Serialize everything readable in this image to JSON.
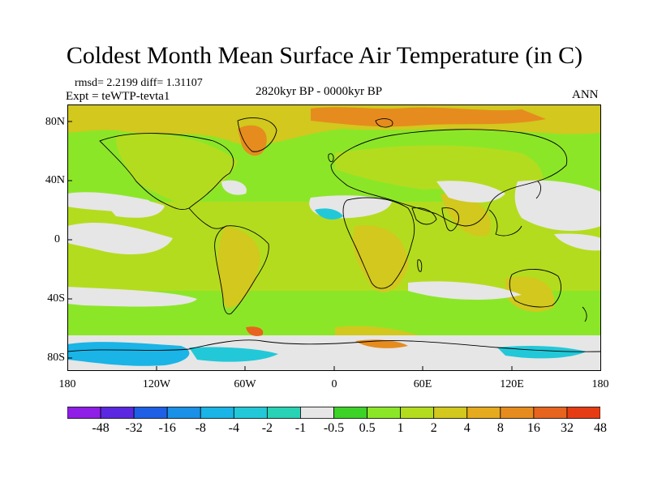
{
  "title": "Coldest Month Mean Surface Air Temperature (in C)",
  "stats": {
    "rmsd_label": "rmsd= 2.2199 diff= 1.31107"
  },
  "experiment_label": "Expt = teWTP-tevta1",
  "period_label": "2820kyr BP - 0000kyr BP",
  "season_label": "ANN",
  "y_axis": {
    "ticks": [
      "80N",
      "40N",
      "0",
      "40S",
      "80S"
    ]
  },
  "x_axis": {
    "ticks": [
      "180",
      "120W",
      "60W",
      "0",
      "60E",
      "120E",
      "180"
    ]
  },
  "colorbar": {
    "colors": [
      "#8f1ee6",
      "#5a28e0",
      "#1f5fe6",
      "#1a90e6",
      "#1ab4e6",
      "#22c8d8",
      "#28d2b4",
      "#e6e6e6",
      "#3cd228",
      "#8ce628",
      "#b4dc1e",
      "#d2c81e",
      "#e6aa1e",
      "#e68c1e",
      "#e6641e",
      "#e63c14"
    ],
    "tick_labels": [
      "-48",
      "-32",
      "-16",
      "-8",
      "-4",
      "-2",
      "-1",
      "-0.5",
      "0.5",
      "1",
      "2",
      "4",
      "8",
      "16",
      "32",
      "48"
    ]
  },
  "palette": {
    "green": "#8ce628",
    "yellowgreen": "#b4dc1e",
    "olive": "#d2c81e",
    "orange": "#e6aa1e",
    "deeporange": "#e68c1e",
    "grey": "#e6e6e6",
    "cyan": "#22c8d8",
    "blue": "#1ab4e6"
  }
}
